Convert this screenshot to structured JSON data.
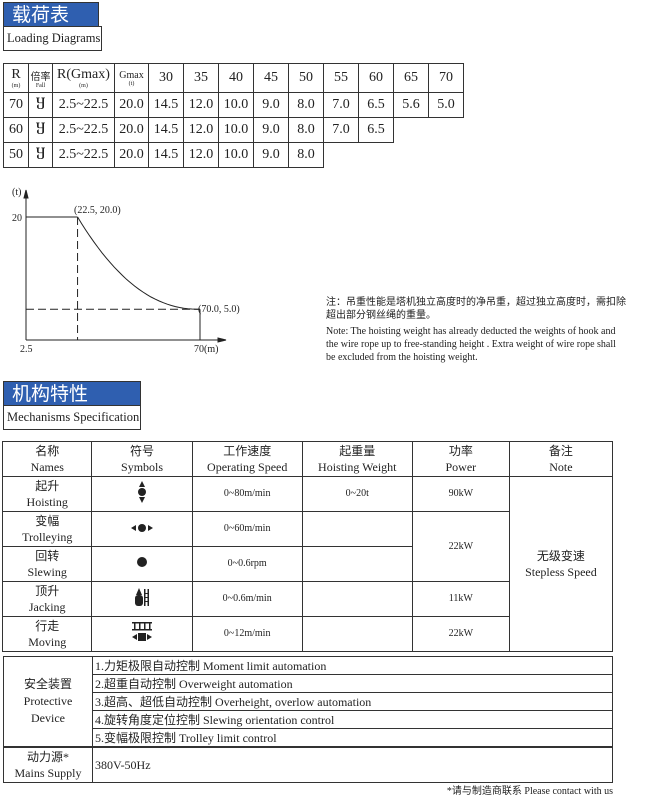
{
  "loading": {
    "title_cn": "载荷表",
    "title_en": "Loading Diagrams",
    "header": {
      "r": "R",
      "r_unit": "(m)",
      "fall": "倍率",
      "fall_en": "Fall",
      "rg": "R(Gmax)",
      "rg_unit": "(m)",
      "gmax": "Gmax",
      "gmax_unit": "(t)",
      "radii": [
        "30",
        "35",
        "40",
        "45",
        "50",
        "55",
        "60",
        "65",
        "70"
      ]
    },
    "rows": [
      {
        "r": "70",
        "fall": "Ⴘ",
        "rg": "2.5~22.5",
        "gmax": "20.0",
        "loads": [
          "14.5",
          "12.0",
          "10.0",
          "9.0",
          "8.0",
          "7.0",
          "6.5",
          "5.6",
          "5.0"
        ]
      },
      {
        "r": "60",
        "fall": "Ⴘ",
        "rg": "2.5~22.5",
        "gmax": "20.0",
        "loads": [
          "14.5",
          "12.0",
          "10.0",
          "9.0",
          "8.0",
          "7.0",
          "6.5"
        ]
      },
      {
        "r": "50",
        "fall": "Ⴘ",
        "rg": "2.5~22.5",
        "gmax": "20.0",
        "loads": [
          "14.5",
          "12.0",
          "10.0",
          "9.0",
          "8.0"
        ]
      }
    ]
  },
  "chart_data": {
    "type": "line",
    "xlabel": "(m)",
    "ylabel": "(t)",
    "x_ticks": [
      "2.5",
      "70"
    ],
    "y_ticks": [
      "20"
    ],
    "points": [
      {
        "x": 2.5,
        "y": 20
      },
      {
        "x": 22.5,
        "y": 20
      },
      {
        "x": 70,
        "y": 5
      }
    ],
    "annotations": [
      "(22.5, 20.0)",
      "(70.0, 5.0)"
    ]
  },
  "note": {
    "cn": "注：吊重性能是塔机独立高度时的净吊重，超过独立高度时，需扣除超出部分钢丝绳的重量。",
    "en": "Note: The hoisting weight has already deducted the weights of hook and the wire rope up to free-standing height . Extra weight of wire rope shall be excluded from the hoisting weight."
  },
  "mech": {
    "title_cn": "机构特性",
    "title_en": "Mechanisms Specification",
    "headers": [
      {
        "cn": "名称",
        "en": "Names"
      },
      {
        "cn": "符号",
        "en": "Symbols"
      },
      {
        "cn": "工作速度",
        "en": "Operating Speed"
      },
      {
        "cn": "起重量",
        "en": "Hoisting Weight"
      },
      {
        "cn": "功率",
        "en": "Power"
      },
      {
        "cn": "备注",
        "en": "Note"
      }
    ],
    "rows": [
      {
        "cn": "起升",
        "en": "Hoisting",
        "icon": "hoisting-icon",
        "speed": "0~80m/min",
        "weight": "0~20t",
        "power": "90kW"
      },
      {
        "cn": "变幅",
        "en": "Trolleying",
        "icon": "trolleying-icon",
        "speed": "0~60m/min",
        "weight": "",
        "power": "22kW"
      },
      {
        "cn": "回转",
        "en": "Slewing",
        "icon": "slewing-icon",
        "speed": "0~0.6rpm",
        "weight": ""
      },
      {
        "cn": "顶升",
        "en": "Jacking",
        "icon": "jacking-icon",
        "speed": "0~0.6m/min",
        "weight": "",
        "power": "11kW"
      },
      {
        "cn": "行走",
        "en": "Moving",
        "icon": "moving-icon",
        "speed": "0~12m/min",
        "weight": "",
        "power": "22kW"
      }
    ],
    "note_cn": "无级变速",
    "note_en": "Stepless Speed"
  },
  "protect": {
    "cn": "安全装置",
    "en1": "Protective",
    "en2": "Device",
    "items": [
      "1.力矩极限自动控制  Moment limit automation",
      "2.超重自动控制  Overweight automation",
      "3.超高、超低自动控制  Overheight, overlow automation",
      "4.旋转角度定位控制  Slewing orientation control",
      "5.变幅极限控制  Trolley limit control"
    ]
  },
  "mains": {
    "cn": "动力源*",
    "en": "Mains Supply",
    "value": "380V-50Hz"
  },
  "footnote": "*请与制造商联系  Please contact with us"
}
